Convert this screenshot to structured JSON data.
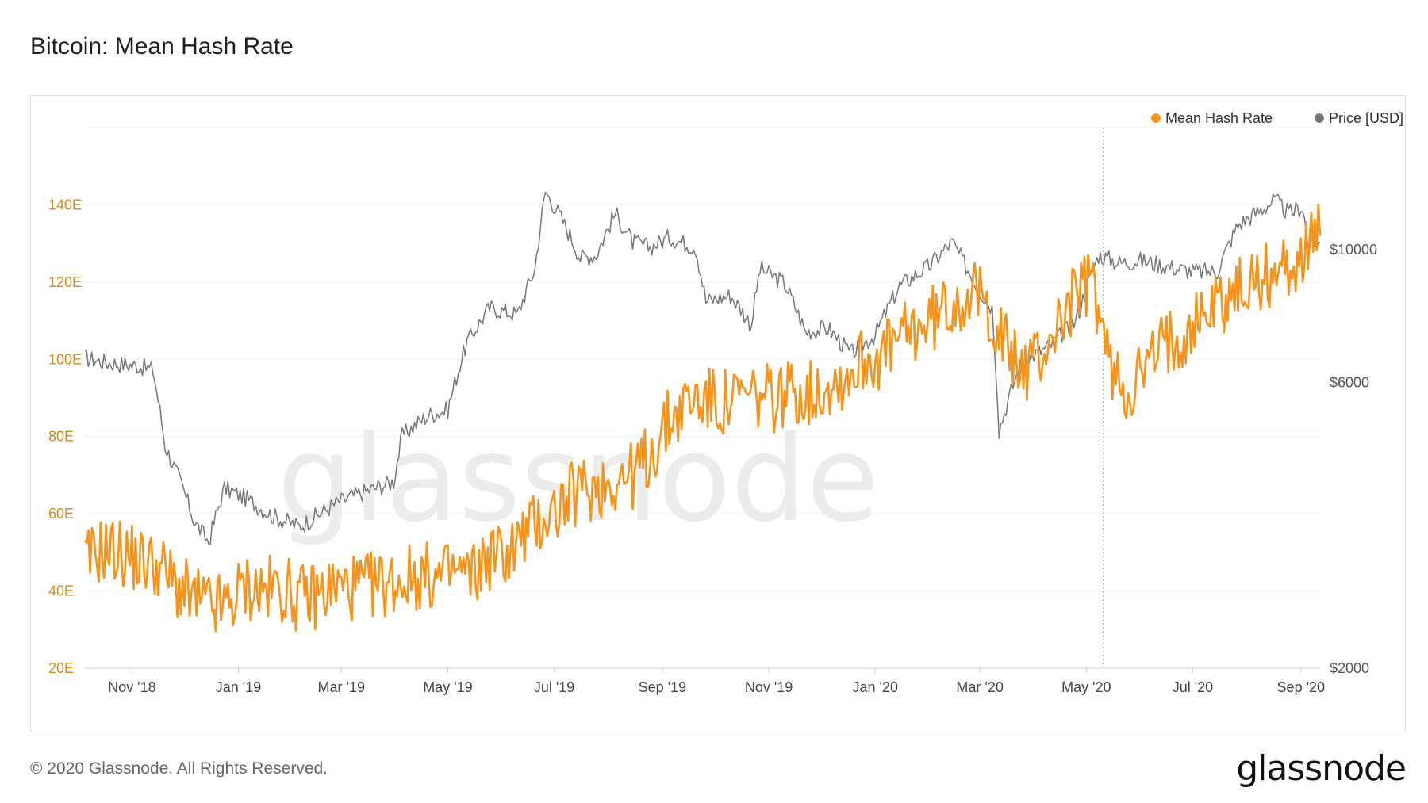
{
  "title": "Bitcoin: Mean Hash Rate",
  "footer": {
    "copyright": "© 2020 Glassnode. All Rights Reserved.",
    "logo": "glassnode"
  },
  "watermark": "glassnode",
  "colors": {
    "hash": "#f7931a",
    "price": "#888888",
    "left_tick": "#d38a1a",
    "grid": "#eeeeee"
  },
  "chart_data": {
    "type": "line",
    "legend": [
      {
        "name": "Mean Hash Rate",
        "color": "#f7931a"
      },
      {
        "name": "Price [USD]",
        "color": "#777777"
      }
    ],
    "legend_position": "top-right",
    "grid": true,
    "x_range": [
      "2018-10-05",
      "2020-09-12"
    ],
    "x_ticks": [
      {
        "label": "Nov '18",
        "date": "2018-11-01"
      },
      {
        "label": "Jan '19",
        "date": "2019-01-01"
      },
      {
        "label": "Mar '19",
        "date": "2019-03-01"
      },
      {
        "label": "May '19",
        "date": "2019-05-01"
      },
      {
        "label": "Jul '19",
        "date": "2019-07-01"
      },
      {
        "label": "Sep '19",
        "date": "2019-09-01"
      },
      {
        "label": "Nov '19",
        "date": "2019-11-01"
      },
      {
        "label": "Jan '20",
        "date": "2020-01-01"
      },
      {
        "label": "Mar '20",
        "date": "2020-03-01"
      },
      {
        "label": "May '20",
        "date": "2020-05-01"
      },
      {
        "label": "Jul '20",
        "date": "2020-07-01"
      },
      {
        "label": "Sep '20",
        "date": "2020-09-01"
      }
    ],
    "y_left": {
      "ylim": [
        20,
        160
      ],
      "ticks": [
        {
          "label": "20E",
          "value": 20
        },
        {
          "label": "40E",
          "value": 40
        },
        {
          "label": "60E",
          "value": 60
        },
        {
          "label": "80E",
          "value": 80
        },
        {
          "label": "100E",
          "value": 100
        },
        {
          "label": "120E",
          "value": 120
        },
        {
          "label": "140E",
          "value": 140
        }
      ]
    },
    "y_right": {
      "scale": "log",
      "ylim": [
        2000,
        16000
      ],
      "ticks": [
        {
          "label": "$2000",
          "value": 2000
        },
        {
          "label": "$6000",
          "value": 6000
        },
        {
          "label": "$10000",
          "value": 10000
        }
      ]
    },
    "marker_line_date": "2020-05-11",
    "series": [
      {
        "name": "Mean Hash Rate",
        "axis": "left",
        "color": "#f7931a",
        "points": [
          [
            "2018-10-05",
            47
          ],
          [
            "2018-10-15",
            51
          ],
          [
            "2018-10-25",
            50
          ],
          [
            "2018-11-05",
            48
          ],
          [
            "2018-11-15",
            47
          ],
          [
            "2018-11-25",
            42
          ],
          [
            "2018-12-05",
            38
          ],
          [
            "2018-12-15",
            36
          ],
          [
            "2018-12-25",
            36
          ],
          [
            "2019-01-05",
            41
          ],
          [
            "2019-01-15",
            40
          ],
          [
            "2019-01-25",
            41
          ],
          [
            "2019-02-05",
            38
          ],
          [
            "2019-02-15",
            39
          ],
          [
            "2019-02-25",
            41
          ],
          [
            "2019-03-05",
            41
          ],
          [
            "2019-03-15",
            41
          ],
          [
            "2019-03-25",
            42
          ],
          [
            "2019-04-05",
            43
          ],
          [
            "2019-04-15",
            44
          ],
          [
            "2019-04-25",
            43
          ],
          [
            "2019-05-05",
            45
          ],
          [
            "2019-05-15",
            44
          ],
          [
            "2019-05-25",
            49
          ],
          [
            "2019-06-05",
            50
          ],
          [
            "2019-06-15",
            55
          ],
          [
            "2019-06-25",
            59
          ],
          [
            "2019-07-05",
            62
          ],
          [
            "2019-07-15",
            66
          ],
          [
            "2019-07-25",
            67
          ],
          [
            "2019-08-05",
            69
          ],
          [
            "2019-08-15",
            70
          ],
          [
            "2019-08-25",
            75
          ],
          [
            "2019-09-05",
            84
          ],
          [
            "2019-09-15",
            89
          ],
          [
            "2019-09-25",
            90
          ],
          [
            "2019-10-05",
            88
          ],
          [
            "2019-10-15",
            90
          ],
          [
            "2019-10-25",
            90
          ],
          [
            "2019-11-05",
            90
          ],
          [
            "2019-11-15",
            92
          ],
          [
            "2019-11-25",
            91
          ],
          [
            "2019-12-05",
            94
          ],
          [
            "2019-12-15",
            95
          ],
          [
            "2019-12-25",
            100
          ],
          [
            "2020-01-05",
            101
          ],
          [
            "2020-01-15",
            105
          ],
          [
            "2020-01-25",
            108
          ],
          [
            "2020-02-05",
            111
          ],
          [
            "2020-02-15",
            115
          ],
          [
            "2020-02-25",
            117
          ],
          [
            "2020-03-05",
            114
          ],
          [
            "2020-03-15",
            104
          ],
          [
            "2020-03-25",
            97
          ],
          [
            "2020-04-05",
            101
          ],
          [
            "2020-04-15",
            109
          ],
          [
            "2020-04-25",
            117
          ],
          [
            "2020-05-05",
            120
          ],
          [
            "2020-05-15",
            97
          ],
          [
            "2020-05-25",
            92
          ],
          [
            "2020-06-05",
            98
          ],
          [
            "2020-06-15",
            104
          ],
          [
            "2020-06-25",
            107
          ],
          [
            "2020-07-05",
            111
          ],
          [
            "2020-07-15",
            115
          ],
          [
            "2020-07-25",
            117
          ],
          [
            "2020-08-05",
            120
          ],
          [
            "2020-08-15",
            122
          ],
          [
            "2020-08-25",
            124
          ],
          [
            "2020-09-05",
            128
          ],
          [
            "2020-09-12",
            132
          ]
        ]
      },
      {
        "name": "Price [USD]",
        "axis": "right",
        "color": "#777777",
        "points": [
          [
            "2018-10-05",
            6600
          ],
          [
            "2018-10-15",
            6500
          ],
          [
            "2018-10-25",
            6450
          ],
          [
            "2018-11-05",
            6400
          ],
          [
            "2018-11-13",
            6300
          ],
          [
            "2018-11-20",
            4700
          ],
          [
            "2018-11-30",
            4000
          ],
          [
            "2018-12-07",
            3500
          ],
          [
            "2018-12-15",
            3250
          ],
          [
            "2018-12-24",
            4000
          ],
          [
            "2019-01-05",
            3850
          ],
          [
            "2019-01-20",
            3600
          ],
          [
            "2019-02-05",
            3450
          ],
          [
            "2019-02-15",
            3600
          ],
          [
            "2019-02-28",
            3800
          ],
          [
            "2019-03-15",
            3950
          ],
          [
            "2019-03-31",
            4100
          ],
          [
            "2019-04-05",
            4900
          ],
          [
            "2019-04-20",
            5300
          ],
          [
            "2019-05-01",
            5400
          ],
          [
            "2019-05-12",
            7000
          ],
          [
            "2019-05-25",
            8000
          ],
          [
            "2019-06-10",
            7800
          ],
          [
            "2019-06-20",
            9300
          ],
          [
            "2019-06-26",
            12500
          ],
          [
            "2019-07-05",
            11300
          ],
          [
            "2019-07-16",
            9700
          ],
          [
            "2019-07-25",
            9800
          ],
          [
            "2019-08-05",
            11500
          ],
          [
            "2019-08-15",
            10300
          ],
          [
            "2019-08-25",
            10100
          ],
          [
            "2019-09-05",
            10500
          ],
          [
            "2019-09-20",
            10100
          ],
          [
            "2019-09-26",
            8200
          ],
          [
            "2019-10-10",
            8400
          ],
          [
            "2019-10-22",
            7500
          ],
          [
            "2019-10-27",
            9300
          ],
          [
            "2019-11-10",
            8800
          ],
          [
            "2019-11-22",
            7300
          ],
          [
            "2019-12-05",
            7400
          ],
          [
            "2019-12-18",
            6700
          ],
          [
            "2020-01-01",
            7200
          ],
          [
            "2020-01-15",
            8700
          ],
          [
            "2020-02-01",
            9400
          ],
          [
            "2020-02-14",
            10300
          ],
          [
            "2020-02-28",
            8700
          ],
          [
            "2020-03-08",
            8000
          ],
          [
            "2020-03-12",
            5000
          ],
          [
            "2020-03-25",
            6500
          ],
          [
            "2020-04-10",
            6900
          ],
          [
            "2020-04-25",
            7600
          ],
          [
            "2020-05-08",
            9800
          ],
          [
            "2020-05-20",
            9500
          ],
          [
            "2020-06-01",
            9600
          ],
          [
            "2020-06-15",
            9400
          ],
          [
            "2020-07-01",
            9200
          ],
          [
            "2020-07-15",
            9200
          ],
          [
            "2020-07-27",
            11000
          ],
          [
            "2020-08-10",
            11700
          ],
          [
            "2020-08-17",
            12100
          ],
          [
            "2020-08-25",
            11500
          ],
          [
            "2020-09-02",
            11800
          ],
          [
            "2020-09-05",
            10200
          ],
          [
            "2020-09-12",
            10300
          ]
        ]
      }
    ]
  }
}
